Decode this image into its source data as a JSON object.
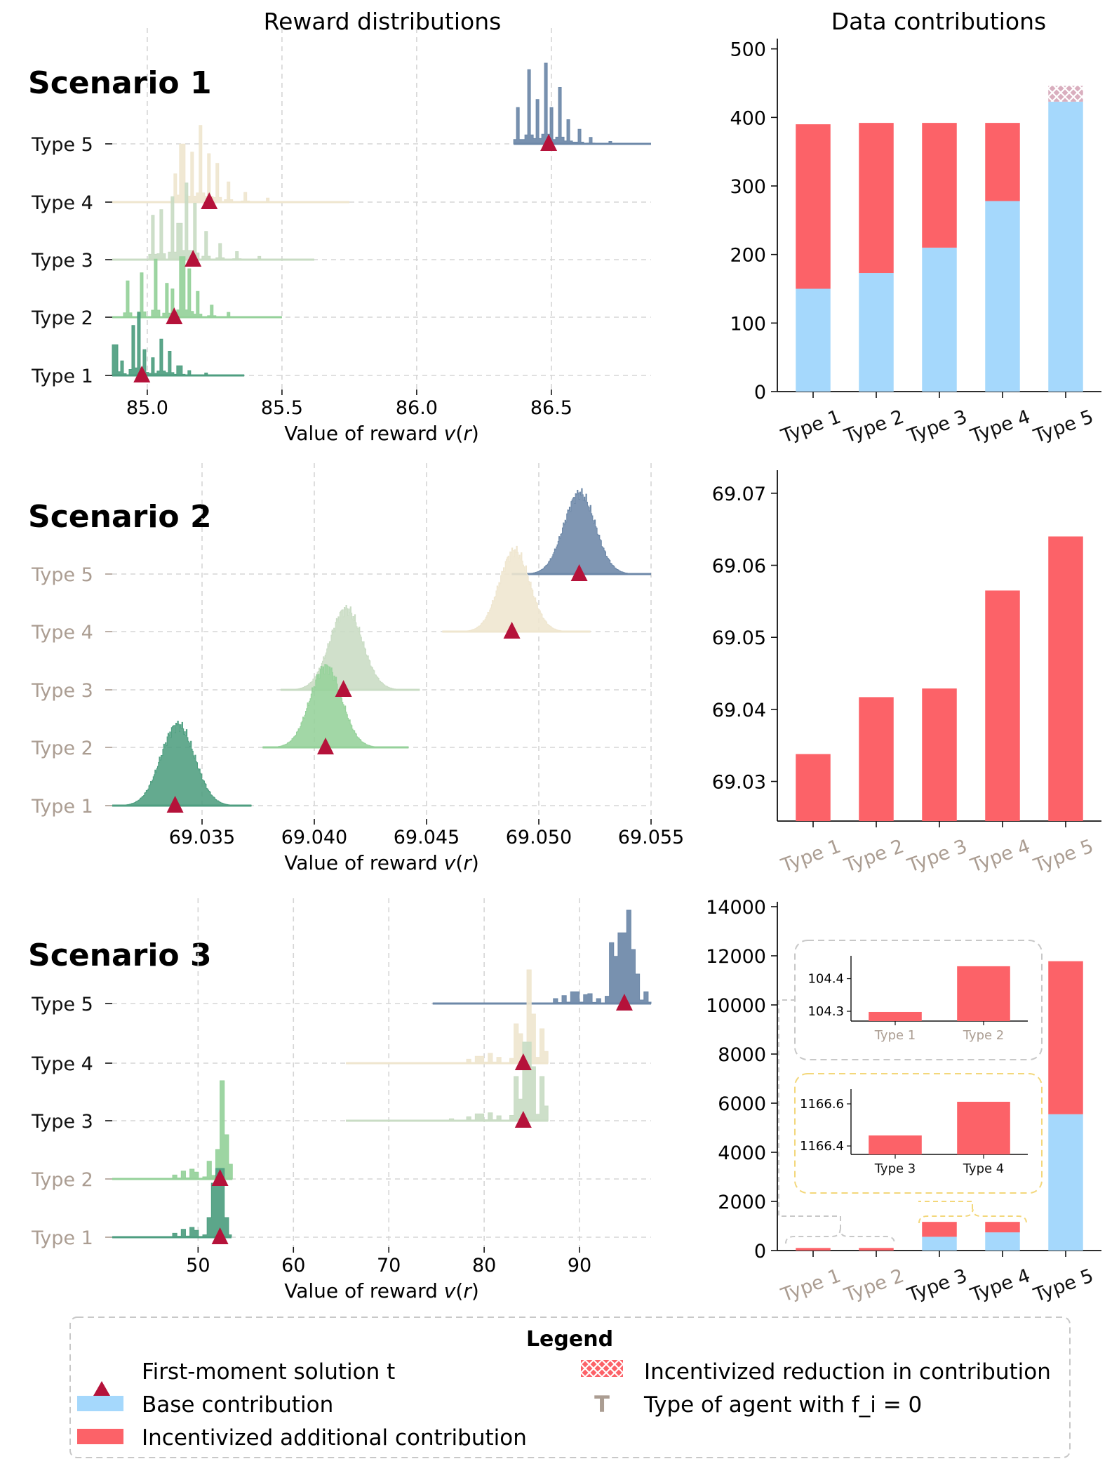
{
  "figure": {
    "left_title": "Reward distributions",
    "right_title": "Data contributions"
  },
  "colors": {
    "type_fill": [
      "#4e9e80",
      "#95d19a",
      "#c9dcc4",
      "#efe6cf",
      "#6d88a8"
    ],
    "base": "#a5d8fc",
    "additional": "#fc6268",
    "reduction": "#d9aebe",
    "marker": "#b5123a",
    "zero_type_label": "#ab9d92",
    "inset_border_gray": "#c8c8c8",
    "inset_border_yellow": "#f3d77a"
  },
  "legend": {
    "title": "Legend",
    "items": [
      {
        "key": "marker",
        "label": "First-moment solution t"
      },
      {
        "key": "reduction",
        "label": "Incentivized reduction in contribution"
      },
      {
        "key": "base",
        "label": "Base contribution"
      },
      {
        "key": "zero_type",
        "label": "Type of agent with f_i = 0",
        "icon_text": "T"
      },
      {
        "key": "additional",
        "label": "Incentivized additional contribution"
      }
    ]
  },
  "chart_data": [
    {
      "type": "area",
      "panel": "scenario-1-reward",
      "scenario_title": "Scenario 1",
      "title": "Reward distributions",
      "xlabel": "Value of reward v(r)",
      "xlim": [
        84.87,
        86.87
      ],
      "xticks": [
        85.0,
        85.5,
        86.0,
        86.5
      ],
      "xtick_labels": [
        "85.0",
        "85.5",
        "86.0",
        "86.5"
      ],
      "grid": true,
      "style": "bars",
      "series": [
        {
          "name": "Type 1",
          "zero_f": false,
          "start": 84.87,
          "end": 85.36,
          "marker": 84.98,
          "peaks": [
            [
              84.88,
              0.38
            ],
            [
              84.91,
              0.18
            ],
            [
              84.95,
              0.62
            ],
            [
              84.97,
              0.78
            ],
            [
              84.99,
              0.32
            ],
            [
              85.02,
              0.22
            ],
            [
              85.05,
              0.45
            ],
            [
              85.08,
              0.3
            ],
            [
              85.12,
              0.12
            ],
            [
              85.16,
              0.06
            ],
            [
              85.22,
              0.03
            ]
          ]
        },
        {
          "name": "Type 2",
          "zero_f": false,
          "start": 84.87,
          "end": 85.5,
          "marker": 85.1,
          "peaks": [
            [
              84.93,
              0.45
            ],
            [
              84.98,
              0.55
            ],
            [
              85.03,
              0.72
            ],
            [
              85.07,
              0.42
            ],
            [
              85.09,
              0.35
            ],
            [
              85.13,
              0.75
            ],
            [
              85.16,
              0.6
            ],
            [
              85.19,
              0.32
            ],
            [
              85.24,
              0.15
            ],
            [
              85.3,
              0.06
            ]
          ]
        },
        {
          "name": "Type 3",
          "zero_f": false,
          "start": 84.87,
          "end": 85.62,
          "marker": 85.17,
          "peaks": [
            [
              85.02,
              0.55
            ],
            [
              85.05,
              0.62
            ],
            [
              85.09,
              0.78
            ],
            [
              85.12,
              0.45
            ],
            [
              85.15,
              0.95
            ],
            [
              85.18,
              0.7
            ],
            [
              85.22,
              0.35
            ],
            [
              85.27,
              0.2
            ],
            [
              85.33,
              0.1
            ],
            [
              85.42,
              0.04
            ]
          ]
        },
        {
          "name": "Type 4",
          "zero_f": false,
          "start": 84.87,
          "end": 85.75,
          "marker": 85.23,
          "peaks": [
            [
              85.1,
              0.35
            ],
            [
              85.13,
              0.72
            ],
            [
              85.17,
              0.62
            ],
            [
              85.2,
              0.95
            ],
            [
              85.23,
              0.6
            ],
            [
              85.26,
              0.48
            ],
            [
              85.3,
              0.25
            ],
            [
              85.36,
              0.12
            ],
            [
              85.45,
              0.05
            ]
          ]
        },
        {
          "name": "Type 5",
          "zero_f": false,
          "start": 86.36,
          "end": 86.87,
          "marker": 86.49,
          "peaks": [
            [
              86.38,
              0.45
            ],
            [
              86.42,
              0.92
            ],
            [
              86.45,
              0.55
            ],
            [
              86.48,
              1.0
            ],
            [
              86.5,
              0.45
            ],
            [
              86.53,
              0.7
            ],
            [
              86.56,
              0.3
            ],
            [
              86.6,
              0.18
            ],
            [
              86.65,
              0.08
            ],
            [
              86.72,
              0.03
            ]
          ]
        }
      ]
    },
    {
      "type": "bar",
      "panel": "scenario-1-contribution",
      "title": "Data contributions",
      "stacked": true,
      "categories": [
        "Type 1",
        "Type 2",
        "Type 3",
        "Type 4",
        "Type 5"
      ],
      "zero_f": [
        false,
        false,
        false,
        false,
        false
      ],
      "ylim": [
        0,
        515
      ],
      "yticks": [
        0,
        100,
        200,
        300,
        400,
        500
      ],
      "ytick_labels": [
        "0",
        "100",
        "200",
        "300",
        "400",
        "500"
      ],
      "series": [
        {
          "name": "Base contribution",
          "values": [
            150,
            173,
            210,
            278,
            423
          ]
        },
        {
          "name": "Incentivized additional contribution",
          "values": [
            240,
            219,
            182,
            114,
            0
          ]
        },
        {
          "name": "Incentivized reduction in contribution",
          "values": [
            0,
            0,
            0,
            0,
            23
          ]
        }
      ]
    },
    {
      "type": "area",
      "panel": "scenario-2-reward",
      "scenario_title": "Scenario 2",
      "xlabel": "Value of reward v(r)",
      "xlim": [
        69.031,
        69.055
      ],
      "xticks": [
        69.035,
        69.04,
        69.045,
        69.05,
        69.055
      ],
      "xtick_labels": [
        "69.035",
        "69.040",
        "69.045",
        "69.050",
        "69.055"
      ],
      "grid": true,
      "style": "smooth",
      "series": [
        {
          "name": "Type 1",
          "zero_f": true,
          "start": 69.031,
          "end": 69.0372,
          "marker": 69.0338,
          "mean": 69.0339,
          "sd": 0.00075
        },
        {
          "name": "Type 2",
          "zero_f": true,
          "start": 69.0377,
          "end": 69.0442,
          "marker": 69.0405,
          "mean": 69.0405,
          "sd": 0.0007
        },
        {
          "name": "Type 3",
          "zero_f": true,
          "start": 69.0385,
          "end": 69.0447,
          "marker": 69.0413,
          "mean": 69.0414,
          "sd": 0.00072
        },
        {
          "name": "Type 4",
          "zero_f": true,
          "start": 69.0457,
          "end": 69.0523,
          "marker": 69.0488,
          "mean": 69.0489,
          "sd": 0.00068
        },
        {
          "name": "Type 5",
          "zero_f": true,
          "start": 69.0488,
          "end": 69.055,
          "marker": 69.0518,
          "mean": 69.0518,
          "sd": 0.0007
        }
      ]
    },
    {
      "type": "bar",
      "panel": "scenario-2-contribution",
      "categories": [
        "Type 1",
        "Type 2",
        "Type 3",
        "Type 4",
        "Type 5"
      ],
      "zero_f": [
        true,
        true,
        true,
        true,
        true
      ],
      "ylim": [
        69.0245,
        69.0732
      ],
      "yticks": [
        69.03,
        69.04,
        69.05,
        69.06,
        69.07
      ],
      "ytick_labels": [
        "69.03",
        "69.04",
        "69.05",
        "69.06",
        "69.07"
      ],
      "series": [
        {
          "name": "Incentivized additional contribution",
          "values": [
            69.0338,
            69.0417,
            69.0429,
            69.0565,
            69.064
          ]
        }
      ]
    },
    {
      "type": "area",
      "panel": "scenario-3-reward",
      "scenario_title": "Scenario 3",
      "xlabel": "Value of reward v(r)",
      "xlim": [
        41.0,
        97.5
      ],
      "xticks": [
        50,
        60,
        70,
        80,
        90
      ],
      "xtick_labels": [
        "50",
        "60",
        "70",
        "80",
        "90"
      ],
      "grid": true,
      "style": "bars",
      "series": [
        {
          "name": "Type 1",
          "zero_f": true,
          "start": 41.0,
          "end": 53.5,
          "marker": 52.3,
          "peaks": [
            [
              47.5,
              0.04
            ],
            [
              48.5,
              0.08
            ],
            [
              49.3,
              0.1
            ],
            [
              50.0,
              0.07
            ],
            [
              51.2,
              0.2
            ],
            [
              51.8,
              0.55
            ],
            [
              52.3,
              0.7
            ],
            [
              52.7,
              0.5
            ],
            [
              53.1,
              0.2
            ]
          ]
        },
        {
          "name": "Type 2",
          "zero_f": true,
          "start": 41.0,
          "end": 53.6,
          "marker": 52.3,
          "peaks": [
            [
              47.5,
              0.04
            ],
            [
              48.5,
              0.08
            ],
            [
              49.3,
              0.1
            ],
            [
              50.0,
              0.07
            ],
            [
              51.2,
              0.18
            ],
            [
              52.0,
              0.3
            ],
            [
              52.6,
              1.0
            ],
            [
              53.0,
              0.45
            ],
            [
              53.3,
              0.15
            ]
          ]
        },
        {
          "name": "Type 3",
          "zero_f": false,
          "start": 65.5,
          "end": 86.7,
          "marker": 84.1,
          "peaks": [
            [
              76.5,
              0.02
            ],
            [
              78.5,
              0.04
            ],
            [
              79.5,
              0.07
            ],
            [
              80.5,
              0.08
            ],
            [
              81.5,
              0.05
            ],
            [
              83.2,
              0.45
            ],
            [
              83.8,
              0.22
            ],
            [
              84.5,
              0.8
            ],
            [
              85.3,
              0.55
            ],
            [
              85.9,
              0.45
            ],
            [
              86.3,
              0.15
            ]
          ]
        },
        {
          "name": "Type 4",
          "zero_f": false,
          "start": 65.5,
          "end": 86.7,
          "marker": 84.1,
          "peaks": [
            [
              78.5,
              0.04
            ],
            [
              79.5,
              0.07
            ],
            [
              80.5,
              0.1
            ],
            [
              81.5,
              0.06
            ],
            [
              83.2,
              0.4
            ],
            [
              83.8,
              0.3
            ],
            [
              84.6,
              0.95
            ],
            [
              85.2,
              0.5
            ],
            [
              85.9,
              0.35
            ],
            [
              86.3,
              0.12
            ]
          ]
        },
        {
          "name": "Type 5",
          "zero_f": false,
          "start": 74.6,
          "end": 97.5,
          "marker": 94.7,
          "peaks": [
            [
              87.5,
              0.05
            ],
            [
              88.5,
              0.08
            ],
            [
              89.5,
              0.12
            ],
            [
              90.5,
              0.09
            ],
            [
              91.3,
              0.1
            ],
            [
              92.0,
              0.05
            ],
            [
              93.3,
              0.62
            ],
            [
              93.8,
              0.48
            ],
            [
              94.5,
              0.72
            ],
            [
              95.0,
              0.95
            ],
            [
              95.5,
              0.55
            ],
            [
              96.2,
              0.3
            ],
            [
              96.8,
              0.12
            ]
          ]
        }
      ]
    },
    {
      "type": "bar",
      "panel": "scenario-3-contribution",
      "stacked": true,
      "categories": [
        "Type 1",
        "Type 2",
        "Type 3",
        "Type 4",
        "Type 5"
      ],
      "zero_f": [
        true,
        true,
        false,
        false,
        false
      ],
      "ylim": [
        0,
        14200
      ],
      "yticks": [
        0,
        2000,
        4000,
        6000,
        8000,
        10000,
        12000,
        14000
      ],
      "ytick_labels": [
        "0",
        "2000",
        "4000",
        "6000",
        "8000",
        "10000",
        "12000",
        "14000"
      ],
      "series": [
        {
          "name": "Base contribution",
          "values": [
            0,
            0,
            560,
            740,
            5550
          ]
        },
        {
          "name": "Incentivized additional contribution",
          "values": [
            104.3,
            104.4,
            606.6,
            426.6,
            6230
          ]
        }
      ],
      "insets": [
        {
          "categories": [
            "Type 1",
            "Type 2"
          ],
          "values": [
            104.298,
            104.438
          ],
          "ylim": [
            104.27,
            104.47
          ],
          "yticks": [
            104.3,
            104.4
          ],
          "ytick_labels": [
            "104.3",
            "104.4"
          ],
          "zero_f": [
            true,
            true
          ]
        },
        {
          "categories": [
            "Type 3",
            "Type 4"
          ],
          "values": [
            1166.45,
            1166.61
          ],
          "ylim": [
            1166.36,
            1166.67
          ],
          "yticks": [
            1166.4,
            1166.6
          ],
          "ytick_labels": [
            "1166.4",
            "1166.6"
          ],
          "zero_f": [
            false,
            false
          ]
        }
      ]
    }
  ]
}
